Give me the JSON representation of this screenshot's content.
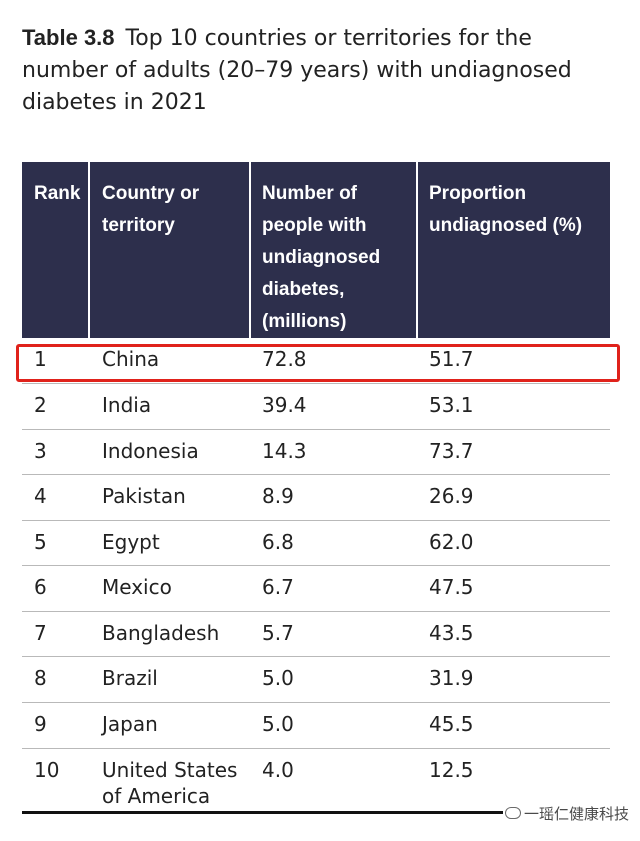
{
  "caption": {
    "label": "Table 3.8",
    "text": "Top 10 countries or territories for the number of adults (20–79 years) with undiagnosed diabetes in 2021"
  },
  "table": {
    "headers": [
      "Rank",
      "Country or territory",
      "Number of people with undiagnosed diabetes, (millions)",
      "Proportion undiagnosed (%)"
    ],
    "rows": [
      {
        "rank": "1",
        "country": "China",
        "number": "72.8",
        "proportion": "51.7"
      },
      {
        "rank": "2",
        "country": "India",
        "number": "39.4",
        "proportion": "53.1"
      },
      {
        "rank": "3",
        "country": "Indonesia",
        "number": "14.3",
        "proportion": "73.7"
      },
      {
        "rank": "4",
        "country": "Pakistan",
        "number": "8.9",
        "proportion": "26.9"
      },
      {
        "rank": "5",
        "country": "Egypt",
        "number": "6.8",
        "proportion": "62.0"
      },
      {
        "rank": "6",
        "country": "Mexico",
        "number": "6.7",
        "proportion": "47.5"
      },
      {
        "rank": "7",
        "country": "Bangladesh",
        "number": "5.7",
        "proportion": "43.5"
      },
      {
        "rank": "8",
        "country": "Brazil",
        "number": "5.0",
        "proportion": "31.9"
      },
      {
        "rank": "9",
        "country": "Japan",
        "number": "5.0",
        "proportion": "45.5"
      },
      {
        "rank": "10",
        "country": "United States of America",
        "number": "4.0",
        "proportion": "12.5"
      }
    ]
  },
  "highlight_color": "#e0221b",
  "header_bg": "#2d2f4c",
  "watermark": {
    "icon": "wechat-icon",
    "text": "一瑶仁健康科技"
  }
}
